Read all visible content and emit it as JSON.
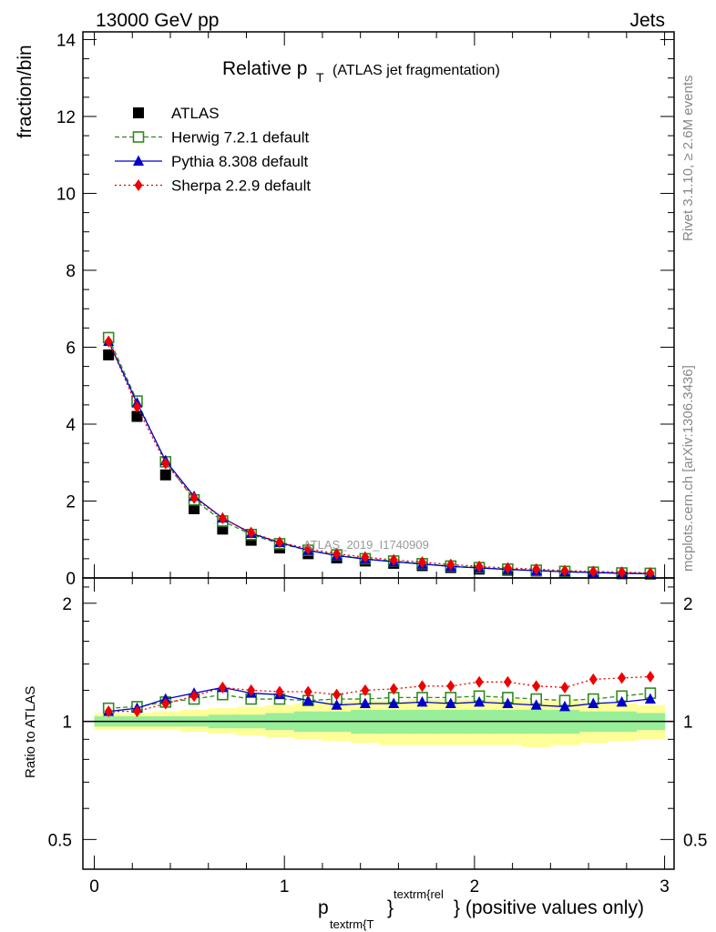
{
  "header": {
    "left": "13000 GeV pp",
    "right": "Jets",
    "title_main": "Relative p",
    "title_sub": "T",
    "title_rest": "(ATLAS jet fragmentation)",
    "analysis_id": "ATLAS_2019_I1740909",
    "side_top": "Rivet 3.1.10, ≥ 2.6M events",
    "side_bottom": "mcplots.cern.ch [arXiv:1306.3436]"
  },
  "axes": {
    "ylabel_main": "fraction/bin",
    "ylabel_ratio": "Ratio to ATLAS",
    "xlabel_p": "p",
    "xlabel_sub": "textrm{T",
    "xlabel_sup": "textrm{rel",
    "xlabel_rest": "} (positive values only)"
  },
  "chart_data": [
    {
      "type": "scatter",
      "panel": "main",
      "title": "Relative pT (ATLAS jet fragmentation)",
      "ylabel": "fraction/bin",
      "xlim": [
        -0.06,
        3.05
      ],
      "ylim": [
        0,
        14.2
      ],
      "yticks": [
        0,
        2,
        4,
        6,
        8,
        10,
        12,
        14
      ],
      "xticks": [
        0,
        1,
        2,
        3
      ],
      "legend_position": "top-left",
      "x": [
        0.075,
        0.225,
        0.375,
        0.525,
        0.675,
        0.825,
        0.975,
        1.125,
        1.275,
        1.425,
        1.575,
        1.725,
        1.875,
        2.025,
        2.175,
        2.325,
        2.475,
        2.625,
        2.775,
        2.925
      ],
      "series": [
        {
          "name": "ATLAS",
          "color": "#000000",
          "marker": "square",
          "values": [
            5.8,
            4.2,
            2.68,
            1.8,
            1.27,
            0.98,
            0.78,
            0.63,
            0.52,
            0.44,
            0.38,
            0.32,
            0.27,
            0.23,
            0.2,
            0.18,
            0.15,
            0.13,
            0.11,
            0.1
          ]
        },
        {
          "name": "Herwig 7.2.1 default",
          "color": "#2f8a1f",
          "marker": "open-square",
          "dash": "5,3",
          "values": [
            6.25,
            4.6,
            3.02,
            2.03,
            1.48,
            1.13,
            0.89,
            0.72,
            0.6,
            0.5,
            0.44,
            0.37,
            0.31,
            0.27,
            0.23,
            0.2,
            0.17,
            0.15,
            0.13,
            0.12
          ]
        },
        {
          "name": "Pythia 8.308 default",
          "color": "#0000cc",
          "marker": "triangle",
          "dash": "",
          "values": [
            6.15,
            4.55,
            3.05,
            2.12,
            1.56,
            1.16,
            0.92,
            0.72,
            0.58,
            0.49,
            0.42,
            0.36,
            0.3,
            0.26,
            0.22,
            0.19,
            0.16,
            0.14,
            0.12,
            0.11
          ]
        },
        {
          "name": "Sherpa 2.2.9 default",
          "color": "#ee0000",
          "marker": "diamond",
          "dash": "2,3",
          "values": [
            6.15,
            4.45,
            2.98,
            2.08,
            1.55,
            1.18,
            0.93,
            0.76,
            0.63,
            0.54,
            0.47,
            0.41,
            0.35,
            0.3,
            0.26,
            0.23,
            0.19,
            0.17,
            0.15,
            0.13
          ]
        }
      ]
    },
    {
      "type": "line",
      "panel": "ratio",
      "ylabel": "Ratio to ATLAS",
      "ylim": [
        0.42,
        2.32
      ],
      "log_scale_y": true,
      "yticks": [
        0.5,
        1,
        2
      ],
      "xticks": [
        0,
        1,
        2,
        3
      ],
      "x": [
        0.075,
        0.225,
        0.375,
        0.525,
        0.675,
        0.825,
        0.975,
        1.125,
        1.275,
        1.425,
        1.575,
        1.725,
        1.875,
        2.025,
        2.175,
        2.325,
        2.475,
        2.625,
        2.775,
        2.925
      ],
      "bands": {
        "yellow": {
          "color": "#ffff99",
          "low": [
            0.95,
            0.95,
            0.95,
            0.94,
            0.93,
            0.92,
            0.91,
            0.9,
            0.89,
            0.88,
            0.87,
            0.87,
            0.87,
            0.87,
            0.87,
            0.86,
            0.87,
            0.88,
            0.89,
            0.9
          ],
          "high": [
            1.05,
            1.05,
            1.06,
            1.07,
            1.08,
            1.09,
            1.1,
            1.11,
            1.12,
            1.13,
            1.13,
            1.14,
            1.14,
            1.14,
            1.14,
            1.13,
            1.13,
            1.12,
            1.11,
            1.1
          ]
        },
        "green": {
          "color": "#99ee99",
          "low": [
            0.97,
            0.97,
            0.97,
            0.97,
            0.96,
            0.96,
            0.95,
            0.94,
            0.94,
            0.93,
            0.93,
            0.93,
            0.93,
            0.93,
            0.93,
            0.93,
            0.93,
            0.94,
            0.94,
            0.95
          ],
          "high": [
            1.03,
            1.03,
            1.03,
            1.03,
            1.04,
            1.04,
            1.05,
            1.06,
            1.06,
            1.07,
            1.07,
            1.07,
            1.07,
            1.07,
            1.07,
            1.07,
            1.07,
            1.06,
            1.06,
            1.05
          ]
        }
      },
      "series": [
        {
          "name": "Herwig 7.2.1 default",
          "color": "#2f8a1f",
          "marker": "open-square",
          "dash": "5,3",
          "values": [
            1.08,
            1.09,
            1.12,
            1.14,
            1.17,
            1.14,
            1.14,
            1.13,
            1.14,
            1.14,
            1.15,
            1.15,
            1.15,
            1.16,
            1.15,
            1.14,
            1.13,
            1.14,
            1.16,
            1.18
          ]
        },
        {
          "name": "Pythia 8.308 default",
          "color": "#0000cc",
          "marker": "triangle",
          "dash": "",
          "values": [
            1.06,
            1.08,
            1.14,
            1.18,
            1.22,
            1.18,
            1.17,
            1.13,
            1.1,
            1.11,
            1.11,
            1.12,
            1.11,
            1.12,
            1.11,
            1.1,
            1.09,
            1.11,
            1.12,
            1.14
          ]
        },
        {
          "name": "Sherpa 2.2.9 default",
          "color": "#ee0000",
          "marker": "diamond",
          "dash": "2,3",
          "values": [
            1.06,
            1.06,
            1.11,
            1.16,
            1.22,
            1.2,
            1.19,
            1.19,
            1.17,
            1.2,
            1.21,
            1.23,
            1.23,
            1.26,
            1.26,
            1.23,
            1.22,
            1.28,
            1.29,
            1.3
          ]
        }
      ]
    }
  ]
}
